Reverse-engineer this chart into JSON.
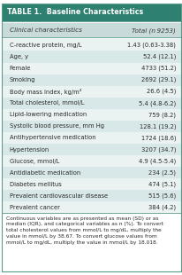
{
  "title": "TABLE 1.  Baseline Characteristics",
  "header": [
    "Clinical characteristics",
    "Total (n 9253)"
  ],
  "rows": [
    [
      "C-reactive protein, mg/L",
      "1.43 (0.63-3.38)"
    ],
    [
      "Age, y",
      "52.4 (12.1)"
    ],
    [
      "Female",
      "4733 (51.2)"
    ],
    [
      "Smoking",
      "2692 (29.1)"
    ],
    [
      "Body mass index, kg/m²",
      "26.6 (4.5)"
    ],
    [
      "Total cholesterol, mmol/L",
      "5.4 (4.8-6.2)"
    ],
    [
      "Lipid-lowering medication",
      "759 (8.2)"
    ],
    [
      "Systolic blood pressure, mm Hg",
      "128.1 (19.2)"
    ],
    [
      "Antihypertensive medication",
      "1724 (18.6)"
    ],
    [
      "Hypertension",
      "3207 (34.7)"
    ],
    [
      "Glucose, mmol/L",
      "4.9 (4.5-5.4)"
    ],
    [
      "Antidiabetic medication",
      "234 (2.5)"
    ],
    [
      "Diabetes mellitus",
      "474 (5.1)"
    ],
    [
      "Prevalent cardiovascular disease",
      "515 (5.6)"
    ],
    [
      "Prevalent cancer",
      "384 (4.2)"
    ]
  ],
  "footer": "Continuous variables are as presented as mean (SD) or as\nmedian (IQR), and categorical variables as n (%). To convert\ntotal cholesterol values from mmol/L to mg/dL, multiply the\nvalue in mmol/L by 38.67. To convert glucose values from\nmmol/L to mg/dL, multiply the value in mmol/L by 18.018.",
  "title_bg": "#2e8070",
  "header_bg": "#c8dada",
  "row_bg_light": "#eaf2f2",
  "row_bg_mid": "#d8e8e8",
  "title_color": "#ffffff",
  "header_color": "#3a3a3a",
  "row_color": "#2a2a2a",
  "footer_color": "#2a2a2a",
  "title_fontsize": 5.8,
  "header_fontsize": 5.2,
  "row_fontsize": 4.9,
  "footer_fontsize": 4.2,
  "border_color": "#5a9a8a"
}
